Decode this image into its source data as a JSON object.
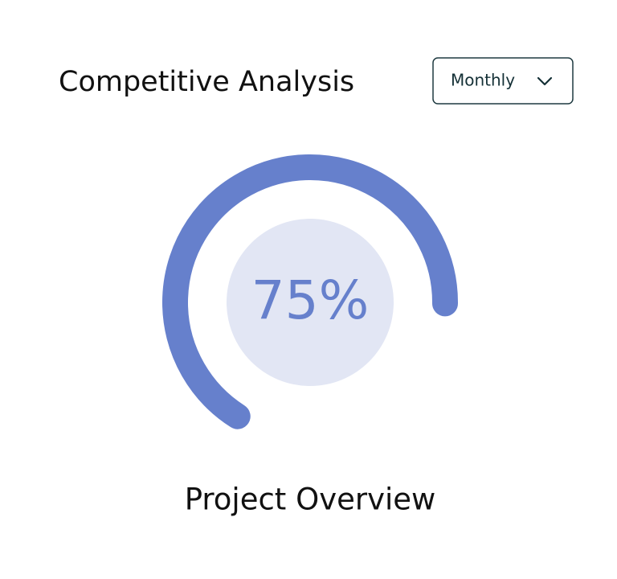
{
  "header": {
    "title": "Competitive Analysis",
    "dropdown": "Monthly"
  },
  "chart_data": {
    "type": "gauge",
    "values": [
      75
    ],
    "value_labels": [
      "75%"
    ],
    "ylim": [
      0,
      100
    ],
    "label": "Project Overview",
    "color": "#6680cc",
    "track_color": "#e2e6f4"
  }
}
